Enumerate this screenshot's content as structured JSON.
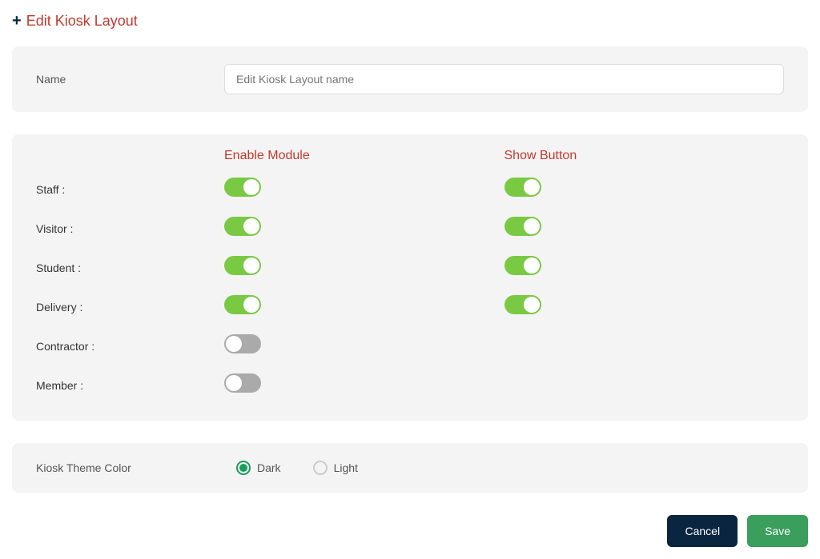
{
  "page": {
    "title": "Edit Kiosk Layout"
  },
  "form": {
    "name_label": "Name",
    "name_placeholder": "Edit Kiosk Layout name",
    "name_value": ""
  },
  "modules": {
    "enable_header": "Enable Module",
    "show_header": "Show Button",
    "rows": [
      {
        "key": "staff",
        "label": "Staff :",
        "enable": true,
        "show": true
      },
      {
        "key": "visitor",
        "label": "Visitor :",
        "enable": true,
        "show": true
      },
      {
        "key": "student",
        "label": "Student :",
        "enable": true,
        "show": true
      },
      {
        "key": "delivery",
        "label": "Delivery :",
        "enable": true,
        "show": true
      },
      {
        "key": "contractor",
        "label": "Contractor :",
        "enable": false,
        "show": null
      },
      {
        "key": "member",
        "label": "Member :",
        "enable": false,
        "show": null
      }
    ]
  },
  "theme": {
    "label": "Kiosk Theme Color",
    "options": [
      {
        "key": "dark",
        "label": "Dark",
        "selected": true
      },
      {
        "key": "light",
        "label": "Light",
        "selected": false
      }
    ]
  },
  "actions": {
    "cancel": "Cancel",
    "save": "Save"
  },
  "colors": {
    "accent": "#c23a2e",
    "panel_bg": "#f4f4f4",
    "toggle_on": "#7ac943",
    "toggle_off": "#aaaaaa",
    "radio_selected": "#1a9e5c",
    "btn_cancel_bg": "#0a2540",
    "btn_save_bg": "#3a9e5c"
  }
}
